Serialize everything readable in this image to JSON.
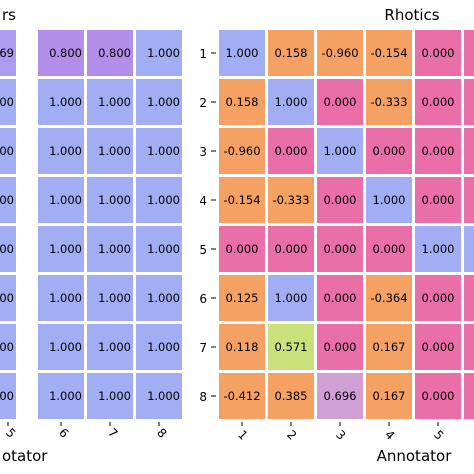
{
  "chart_data": [
    {
      "type": "heatmap",
      "title": "rs",
      "xlabel": "otator",
      "ylabel": "",
      "x_tick_labels": [
        "5",
        "6",
        "7",
        "8"
      ],
      "y_tick_labels": [],
      "visible_columns": [
        "4 (partial)",
        "5",
        "6",
        "7",
        "8"
      ],
      "rows": [
        [
          ".769",
          "0.800",
          "0.800",
          "1.000"
        ],
        [
          "000",
          "1.000",
          "1.000",
          "1.000"
        ],
        [
          "000",
          "1.000",
          "1.000",
          "1.000"
        ],
        [
          "000",
          "1.000",
          "1.000",
          "1.000"
        ],
        [
          "000",
          "1.000",
          "1.000",
          "1.000"
        ],
        [
          "000",
          "1.000",
          "1.000",
          "1.000"
        ],
        [
          "000",
          "1.000",
          "1.000",
          "1.000"
        ],
        [
          "000",
          "1.000",
          "1.000",
          "1.000"
        ]
      ],
      "values": [
        [
          0.769,
          0.8,
          0.8,
          1.0
        ],
        [
          1.0,
          1.0,
          1.0,
          1.0
        ],
        [
          1.0,
          1.0,
          1.0,
          1.0
        ],
        [
          1.0,
          1.0,
          1.0,
          1.0
        ],
        [
          1.0,
          1.0,
          1.0,
          1.0
        ],
        [
          1.0,
          1.0,
          1.0,
          1.0
        ],
        [
          1.0,
          1.0,
          1.0,
          1.0
        ],
        [
          1.0,
          1.0,
          1.0,
          1.0
        ]
      ]
    },
    {
      "type": "heatmap",
      "title": "Rhotics",
      "xlabel": "Annotator",
      "ylabel": "",
      "x_tick_labels": [
        "1",
        "2",
        "3",
        "4",
        "5"
      ],
      "y_tick_labels": [
        "1",
        "2",
        "3",
        "4",
        "5",
        "6",
        "7",
        "8"
      ],
      "rows": [
        [
          "1.000",
          "0.158",
          "-0.960",
          "-0.154",
          "0.000"
        ],
        [
          "0.158",
          "1.000",
          "0.000",
          "-0.333",
          "0.000"
        ],
        [
          "-0.960",
          "0.000",
          "1.000",
          "0.000",
          "0.000"
        ],
        [
          "-0.154",
          "-0.333",
          "0.000",
          "1.000",
          "0.000"
        ],
        [
          "0.000",
          "0.000",
          "0.000",
          "0.000",
          "1.000"
        ],
        [
          "0.125",
          "1.000",
          "0.000",
          "-0.364",
          "0.000"
        ],
        [
          "0.118",
          "0.571",
          "0.000",
          "0.167",
          "0.000"
        ],
        [
          "-0.412",
          "0.385",
          "0.696",
          "0.167",
          "0.000"
        ]
      ],
      "values": [
        [
          1.0,
          0.158,
          -0.96,
          -0.154,
          0.0
        ],
        [
          0.158,
          1.0,
          0.0,
          -0.333,
          0.0
        ],
        [
          -0.96,
          0.0,
          1.0,
          0.0,
          0.0
        ],
        [
          -0.154,
          -0.333,
          0.0,
          1.0,
          0.0
        ],
        [
          0.0,
          0.0,
          0.0,
          0.0,
          1.0
        ],
        [
          0.125,
          1.0,
          0.0,
          -0.364,
          0.0
        ],
        [
          0.118,
          0.571,
          0.0,
          0.167,
          0.0
        ],
        [
          -0.412,
          0.385,
          0.696,
          0.167,
          0.0
        ]
      ]
    }
  ],
  "colors": {
    "one": "#a1aef4",
    "zero": "#ea6fa8",
    "orange": "#f5a164",
    "green": "#c9e07b",
    "lilac": "#ac9cf0",
    "purple": "#b28ee9",
    "blue_pink": "#d09fd6"
  }
}
